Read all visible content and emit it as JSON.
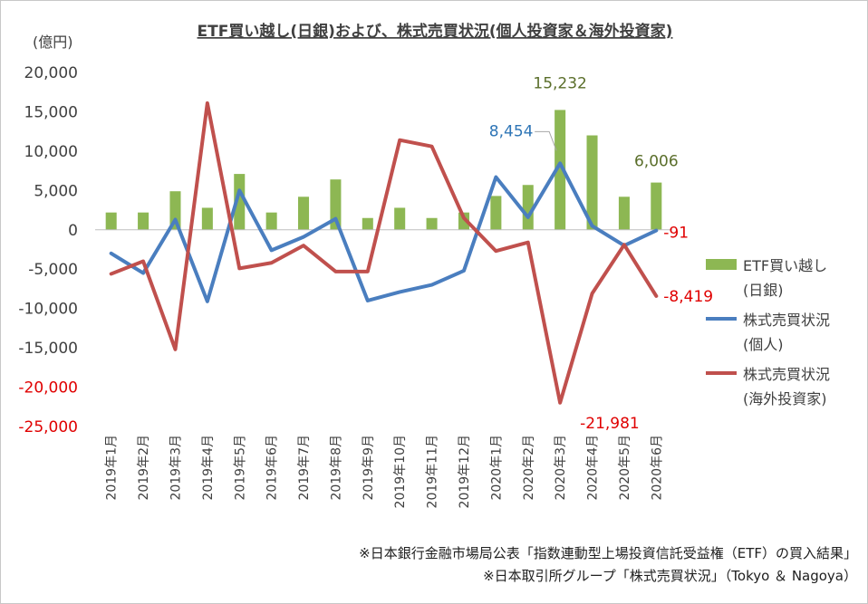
{
  "chart_data": {
    "type": "bar+line",
    "title": "ETF買い越し(日銀)および、株式売買状況(個人投資家＆海外投資家)",
    "unit_label": "(億円)",
    "ylim": [
      -25000,
      20000
    ],
    "y_ticks": [
      "20,000",
      "15,000",
      "10,000",
      "5,000",
      "0",
      "-5,000",
      "-10,000",
      "-15,000",
      "-20,000",
      "-25,000"
    ],
    "y_tick_values": [
      20000,
      15000,
      10000,
      5000,
      0,
      -5000,
      -10000,
      -15000,
      -20000,
      -25000
    ],
    "categories": [
      "2019年1月",
      "2019年2月",
      "2019年3月",
      "2019年4月",
      "2019年5月",
      "2019年6月",
      "2019年7月",
      "2019年8月",
      "2019年9月",
      "2019年10月",
      "2019年11月",
      "2019年12月",
      "2020年1月",
      "2020年2月",
      "2020年3月",
      "2020年4月",
      "2020年5月",
      "2020年6月"
    ],
    "grid": false,
    "legend_position": "right",
    "series": [
      {
        "name": "ETF買い越し(日銀)",
        "legend_lines": [
          "ETF買い越し",
          "(日銀)"
        ],
        "type": "bar",
        "color": "#8db753",
        "values": [
          2200,
          2200,
          4900,
          2800,
          7100,
          2200,
          4200,
          6400,
          1500,
          2800,
          1500,
          2200,
          4300,
          5700,
          15232,
          12000,
          4200,
          6006
        ]
      },
      {
        "name": "株式売買状況(個人)",
        "legend_lines": [
          "株式売買状況",
          "(個人)"
        ],
        "type": "line",
        "color": "#4a7ebf",
        "values": [
          -3000,
          -5500,
          1300,
          -9100,
          5000,
          -2600,
          -900,
          1400,
          -9000,
          -7900,
          -7000,
          -5200,
          6700,
          1600,
          8454,
          500,
          -2000,
          -91
        ]
      },
      {
        "name": "株式売買状況(海外投資家)",
        "legend_lines": [
          "株式売買状況",
          "(海外投資家)"
        ],
        "type": "line",
        "color": "#c0504d",
        "values": [
          -5600,
          -4000,
          -15200,
          16100,
          -4900,
          -4200,
          -2000,
          -5300,
          -5300,
          11400,
          10600,
          1500,
          -2700,
          -1600,
          -21981,
          -8100,
          -1900,
          -8419
        ]
      }
    ],
    "data_labels": [
      {
        "text": "15,232",
        "series": 0,
        "index": 14,
        "color": "#5a6e2a"
      },
      {
        "text": "6,006",
        "series": 0,
        "index": 17,
        "color": "#5a6e2a"
      },
      {
        "text": "8,454",
        "series": 1,
        "index": 14,
        "color": "#2e75b6"
      },
      {
        "text": "-91",
        "series": 1,
        "index": 17,
        "color": "#e00000"
      },
      {
        "text": "-21,981",
        "series": 2,
        "index": 14,
        "color": "#e00000"
      },
      {
        "text": "-8,419",
        "series": 2,
        "index": 17,
        "color": "#e00000"
      }
    ],
    "notes": [
      "※日本銀行金融市場局公表「指数連動型上場投資信託受益権（ETF）の買入結果」",
      "※日本取引所グループ「株式売買状況」（Tokyo ＆ Nagoya）"
    ]
  }
}
